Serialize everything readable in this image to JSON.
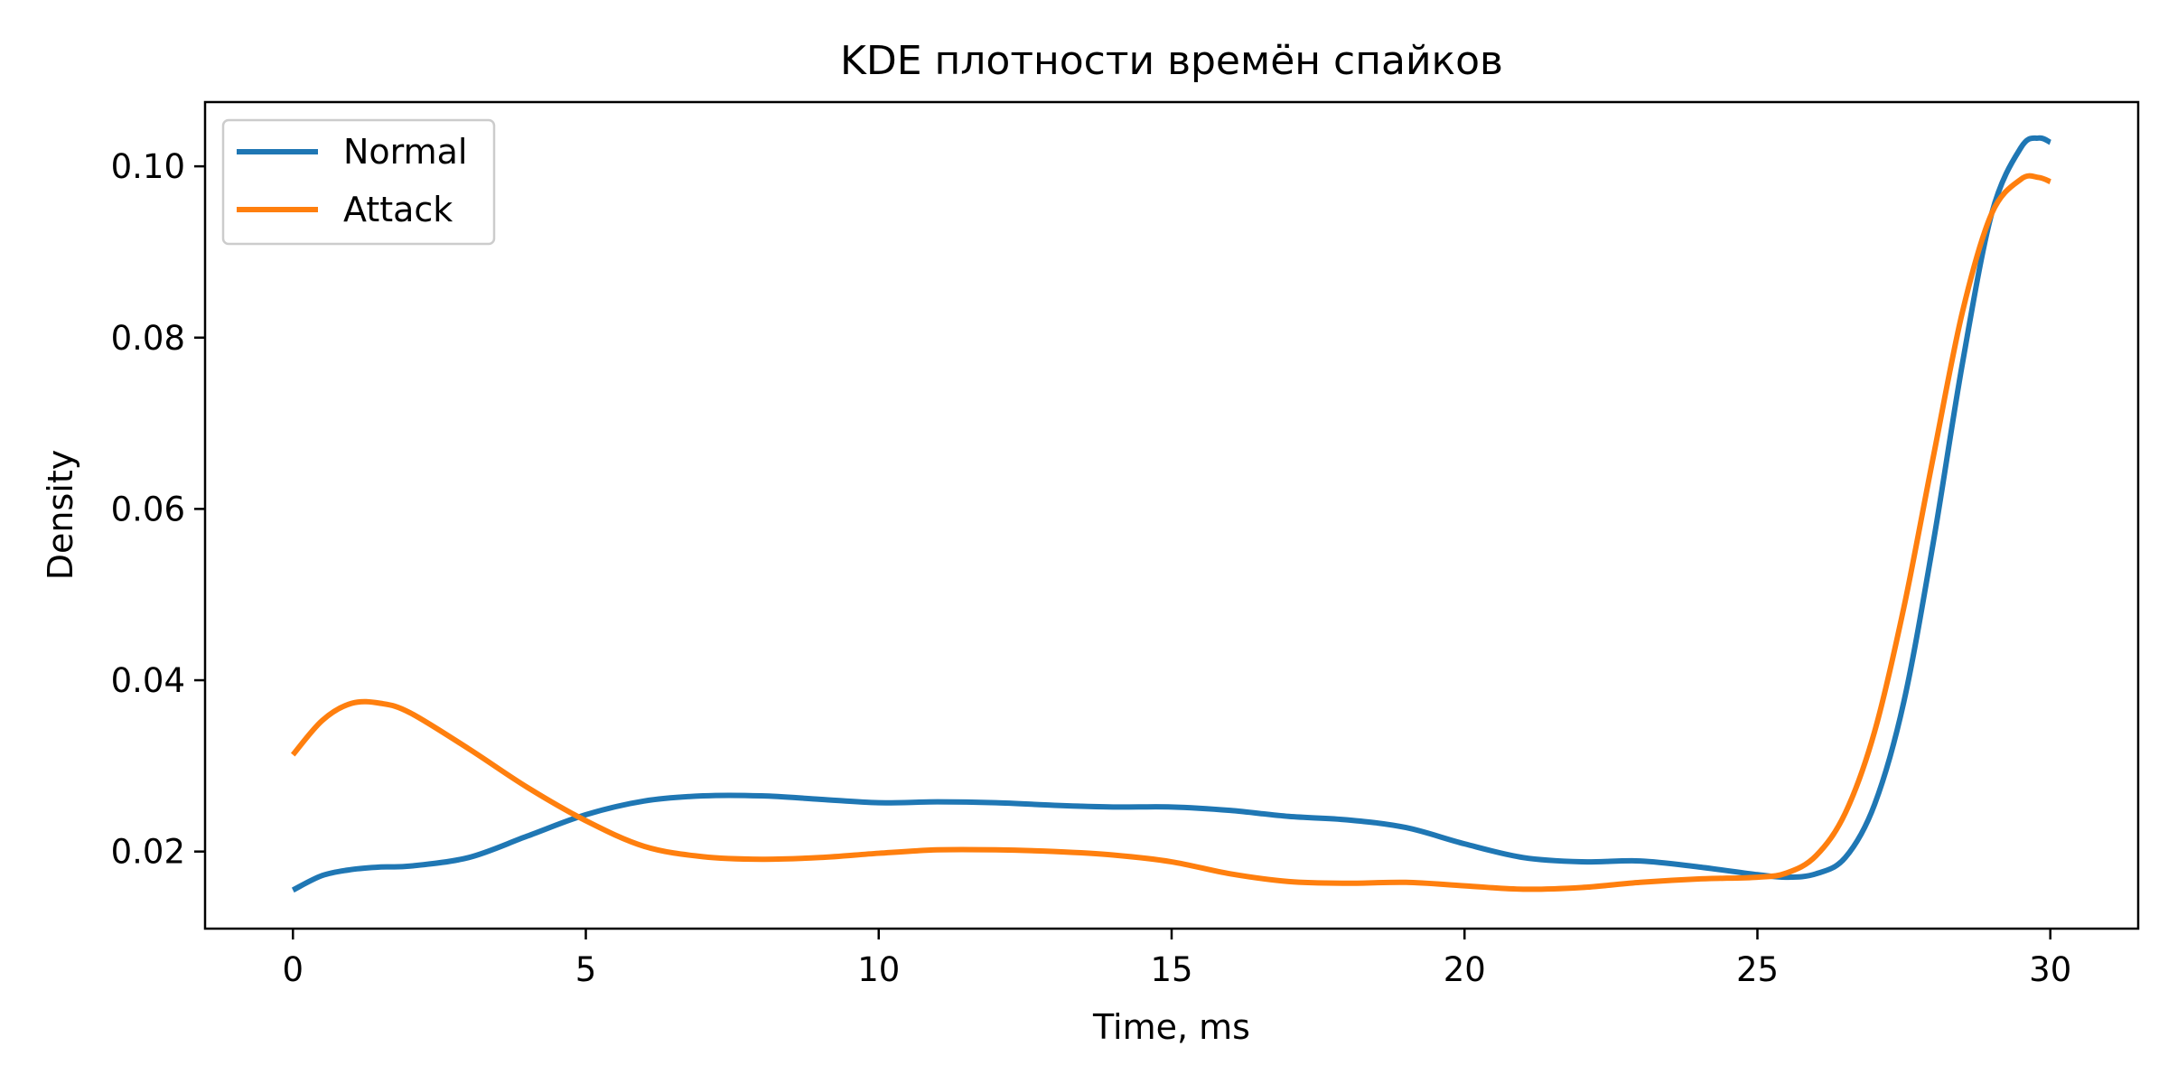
{
  "chart_data": {
    "type": "line",
    "title": "KDE плотности времён спайков",
    "xlabel": "Time, ms",
    "ylabel": "Density",
    "xlim": [
      -1.5,
      31.5
    ],
    "ylim": [
      0.011,
      0.1075
    ],
    "xticks": [
      0,
      5,
      10,
      15,
      20,
      25,
      30
    ],
    "xtick_labels": [
      "0",
      "5",
      "10",
      "15",
      "20",
      "25",
      "30"
    ],
    "yticks": [
      0.02,
      0.04,
      0.06,
      0.08,
      0.1
    ],
    "ytick_labels": [
      "0.02",
      "0.04",
      "0.06",
      "0.08",
      "0.10"
    ],
    "grid": false,
    "legend_position": "upper-left",
    "series": [
      {
        "name": "Normal",
        "color": "#1f77b4",
        "x": [
          0,
          0.5,
          1,
          1.5,
          2,
          3,
          4,
          5,
          6,
          7,
          8,
          9,
          10,
          11,
          12,
          13,
          14,
          15,
          16,
          17,
          18,
          19,
          20,
          21,
          22,
          23,
          24,
          25,
          25.5,
          26,
          26.5,
          27,
          27.5,
          28,
          28.5,
          29,
          29.5,
          29.8,
          30
        ],
        "y": [
          0.0155,
          0.0172,
          0.0179,
          0.0182,
          0.0183,
          0.0193,
          0.0218,
          0.0243,
          0.0259,
          0.0265,
          0.0265,
          0.0261,
          0.0257,
          0.0258,
          0.0257,
          0.0254,
          0.0252,
          0.0252,
          0.0248,
          0.0241,
          0.0237,
          0.0228,
          0.0209,
          0.0193,
          0.0188,
          0.0189,
          0.0182,
          0.0173,
          0.017,
          0.0174,
          0.0193,
          0.0255,
          0.0375,
          0.056,
          0.077,
          0.0945,
          0.1022,
          0.1033,
          0.1028
        ]
      },
      {
        "name": "Attack",
        "color": "#ff7f0e",
        "x": [
          0,
          0.5,
          1,
          1.5,
          2,
          3,
          4,
          5,
          6,
          7,
          8,
          9,
          10,
          11,
          12,
          13,
          14,
          15,
          16,
          17,
          18,
          19,
          20,
          21,
          22,
          23,
          24,
          25,
          25.5,
          26,
          26.5,
          27,
          27.5,
          28,
          28.5,
          29,
          29.5,
          29.8,
          30
        ],
        "y": [
          0.0313,
          0.0353,
          0.0373,
          0.0373,
          0.0362,
          0.032,
          0.0275,
          0.0236,
          0.0206,
          0.0194,
          0.0191,
          0.0193,
          0.0198,
          0.0202,
          0.0202,
          0.02,
          0.0196,
          0.0188,
          0.0174,
          0.0165,
          0.0163,
          0.0164,
          0.016,
          0.0156,
          0.0158,
          0.0164,
          0.0168,
          0.017,
          0.0175,
          0.0195,
          0.0245,
          0.034,
          0.0485,
          0.066,
          0.083,
          0.0945,
          0.0985,
          0.0987,
          0.0982
        ]
      }
    ]
  }
}
